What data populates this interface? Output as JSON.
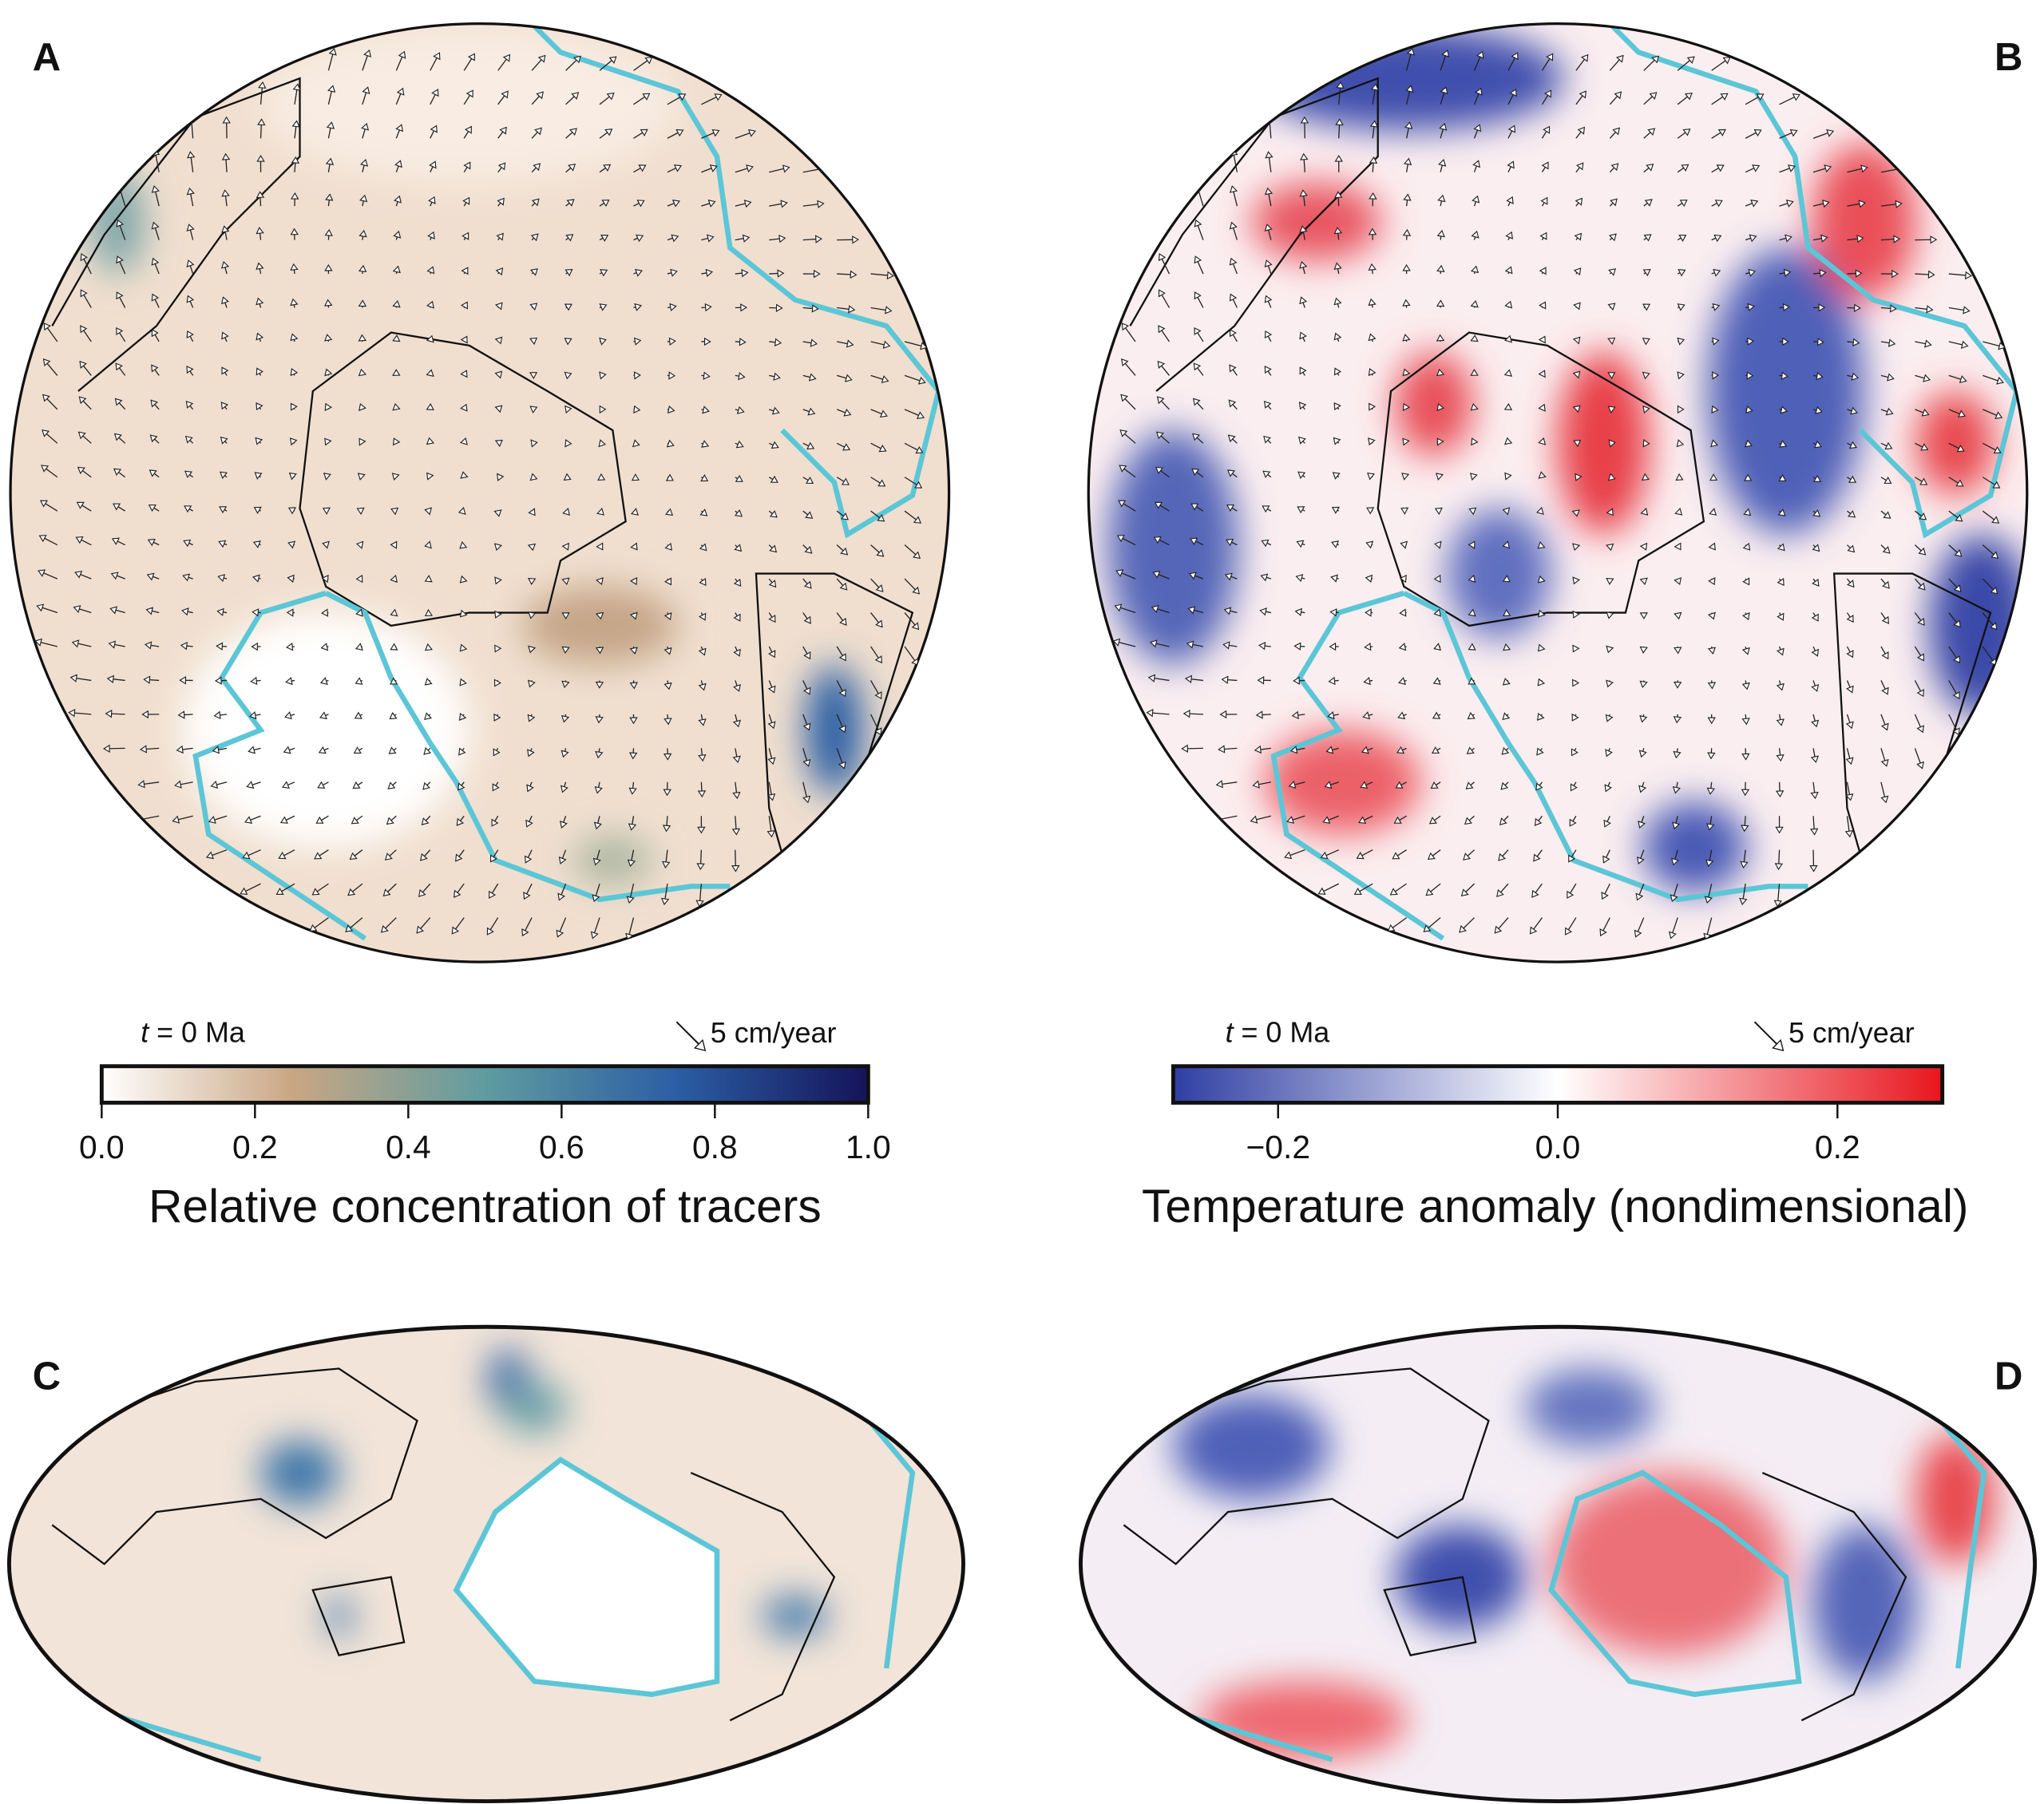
{
  "panels": [
    {
      "label": "A"
    },
    {
      "label": "B"
    },
    {
      "label": "C"
    },
    {
      "label": "D"
    }
  ],
  "colorbars": [
    {
      "time_variable": "t",
      "time_text": "= 0 Ma",
      "scale_text": "5 cm/year",
      "title": "Relative concentration of tracers",
      "range": [
        0,
        1
      ],
      "ticks": [
        {
          "value": 0,
          "label": "0.0"
        },
        {
          "value": 0.2,
          "label": "0.2"
        },
        {
          "value": 0.4,
          "label": "0.4"
        },
        {
          "value": 0.6,
          "label": "0.6"
        },
        {
          "value": 0.8,
          "label": "0.8"
        },
        {
          "value": 1,
          "label": "1.0"
        }
      ],
      "colors": [
        "#ffffff",
        "#c9a683",
        "#5f9ca0",
        "#2b5ea4",
        "#15145a"
      ]
    },
    {
      "time_variable": "t",
      "time_text": "= 0 Ma",
      "scale_text": "5 cm/year",
      "title": "Temperature anomaly (nondimensional)",
      "range": [
        -0.275,
        0.275
      ],
      "ticks": [
        {
          "value": -0.2,
          "label": "−0.2"
        },
        {
          "value": 0,
          "label": "0.0"
        },
        {
          "value": 0.2,
          "label": "0.2"
        }
      ],
      "colors": [
        "#2f3fa3",
        "#ffffff",
        "#e8161e"
      ]
    }
  ]
}
